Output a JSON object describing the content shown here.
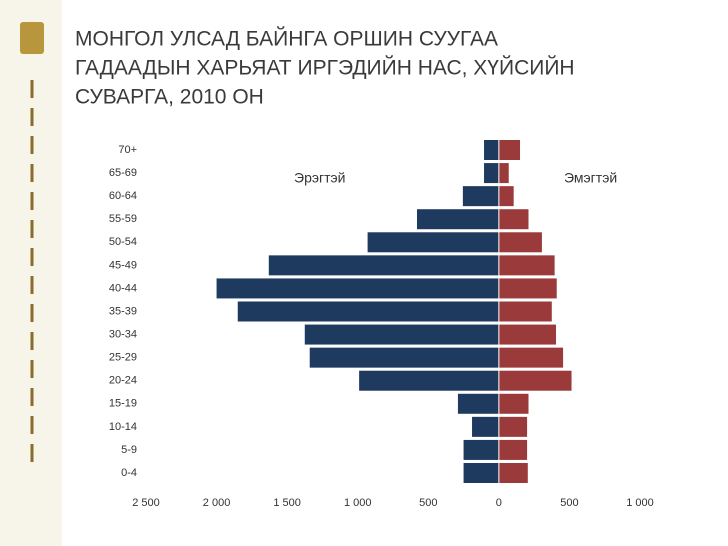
{
  "chart_data": {
    "type": "pyramid",
    "title": [
      "МОНГОЛ УЛСАД БАЙНГА ОРШИН СУУГАА",
      "ГАДААДЫН ХАРЬЯАТ ИРГЭДИЙН НАС, ХҮЙСИЙН",
      "СУВАРГА, 2010 ОН"
    ],
    "categories": [
      "0-4",
      "5-9",
      "10-14",
      "15-19",
      "20-24",
      "25-29",
      "30-34",
      "35-39",
      "40-44",
      "45-49",
      "50-54",
      "55-59",
      "60-64",
      "65-69",
      "70+"
    ],
    "series": [
      {
        "name": "Эрэгтэй",
        "color": "#1f3a5f",
        "values": [
          -250,
          -250,
          -190,
          -290,
          -990,
          -1340,
          -1375,
          -1850,
          -2000,
          -1630,
          -930,
          -580,
          -255,
          -105,
          -105
        ]
      },
      {
        "name": "Эмэгтэй",
        "color": "#9b3a3a",
        "values": [
          205,
          200,
          200,
          210,
          515,
          455,
          405,
          375,
          410,
          395,
          305,
          210,
          105,
          70,
          150
        ]
      }
    ],
    "xlim": [
      -2500,
      1000
    ],
    "xticks": [
      {
        "value": -2500,
        "label": "2 500"
      },
      {
        "value": -2000,
        "label": "2 000"
      },
      {
        "value": -1500,
        "label": "1 500"
      },
      {
        "value": -1000,
        "label": "1 000"
      },
      {
        "value": -500,
        "label": "500"
      },
      0,
      500,
      {
        "value": 1000,
        "label": "1 000"
      }
    ]
  }
}
